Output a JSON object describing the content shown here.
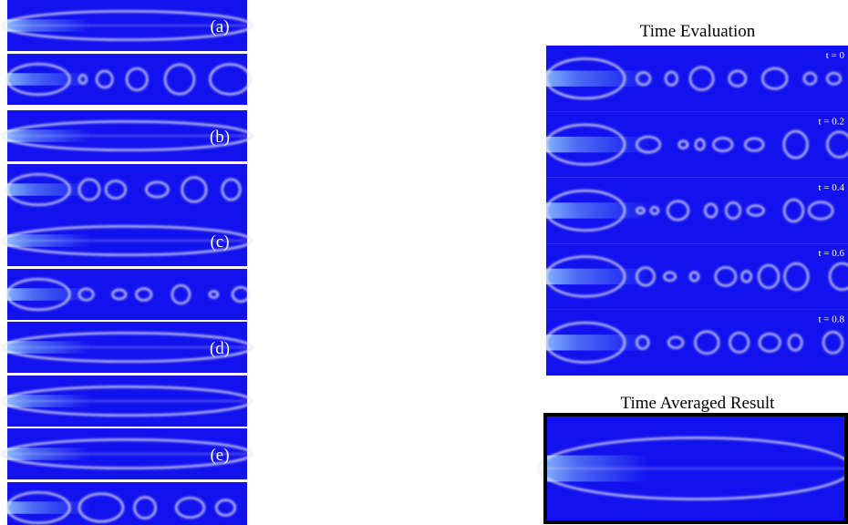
{
  "left_panels": [
    {
      "label": "(a)"
    },
    {
      "label": "(b)"
    },
    {
      "label": "(c)"
    },
    {
      "label": "(d)"
    },
    {
      "label": "(e)"
    }
  ],
  "right_panel": {
    "title": "Time Evaluation",
    "frames": [
      {
        "label": "t = 0"
      },
      {
        "label": "t = 0.2"
      },
      {
        "label": "t = 0.4"
      },
      {
        "label": "t = 0.6"
      },
      {
        "label": "t = 0.8"
      }
    ]
  },
  "averaged": {
    "title": "Time Averaged Result"
  }
}
